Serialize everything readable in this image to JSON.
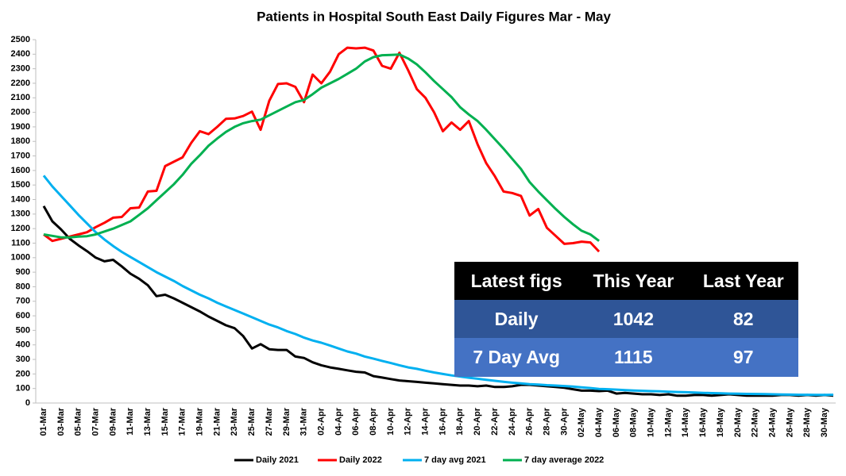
{
  "chart_data": {
    "type": "line",
    "title": "Patients in Hospital  South East Daily Figures Mar - May",
    "categories": [
      "01-Mar",
      null,
      "03-Mar",
      null,
      "05-Mar",
      null,
      "07-Mar",
      null,
      "09-Mar",
      null,
      "11-Mar",
      null,
      "13-Mar",
      null,
      "15-Mar",
      null,
      "17-Mar",
      null,
      "19-Mar",
      null,
      "21-Mar",
      null,
      "23-Mar",
      null,
      "25-Mar",
      null,
      "27-Mar",
      null,
      "29-Mar",
      null,
      "31-Mar",
      null,
      "02-Apr",
      null,
      "04-Apr",
      null,
      "06-Apr",
      null,
      "08-Apr",
      null,
      "10-Apr",
      null,
      "12-Apr",
      null,
      "14-Apr",
      null,
      "16-Apr",
      null,
      "18-Apr",
      null,
      "20-Apr",
      null,
      "22-Apr",
      null,
      "24-Apr",
      null,
      "26-Apr",
      null,
      "28-Apr",
      null,
      "30-Apr",
      null,
      "02-May",
      null,
      "04-May",
      null,
      "06-May",
      null,
      "08-May",
      null,
      "10-May",
      null,
      "12-May",
      null,
      "14-May",
      null,
      "16-May",
      null,
      "18-May",
      null,
      "20-May",
      null,
      "22-May",
      null,
      "24-May",
      null,
      "26-May",
      null,
      "28-May",
      null,
      "30-May",
      null
    ],
    "series": [
      {
        "name": "Daily 2021",
        "color": "#000000",
        "values": [
          1355,
          1250,
          1195,
          1130,
          1085,
          1045,
          1000,
          975,
          985,
          940,
          890,
          855,
          810,
          735,
          745,
          720,
          690,
          660,
          630,
          595,
          565,
          535,
          515,
          460,
          375,
          405,
          370,
          365,
          365,
          320,
          310,
          280,
          260,
          245,
          235,
          225,
          215,
          210,
          185,
          175,
          165,
          155,
          150,
          145,
          140,
          135,
          130,
          125,
          120,
          120,
          115,
          120,
          110,
          110,
          115,
          125,
          125,
          120,
          115,
          110,
          105,
          95,
          85,
          85,
          82,
          85,
          65,
          70,
          65,
          60,
          60,
          55,
          60,
          50,
          50,
          55,
          55,
          50,
          55,
          60,
          55,
          50,
          50,
          50,
          50,
          55,
          55,
          50,
          55,
          50,
          55,
          50
        ]
      },
      {
        "name": "Daily 2022",
        "color": "#ff0000",
        "values": [
          1160,
          1115,
          1130,
          1145,
          1160,
          1175,
          1210,
          1240,
          1275,
          1280,
          1340,
          1345,
          1455,
          1460,
          1630,
          1660,
          1690,
          1790,
          1870,
          1850,
          1900,
          1955,
          1958,
          1975,
          2005,
          1880,
          2080,
          2195,
          2200,
          2175,
          2070,
          2260,
          2200,
          2280,
          2400,
          2445,
          2440,
          2445,
          2425,
          2320,
          2300,
          2410,
          2290,
          2160,
          2100,
          2000,
          1870,
          1930,
          1880,
          1940,
          1780,
          1650,
          1560,
          1455,
          1445,
          1425,
          1290,
          1335,
          1205,
          1150,
          1095,
          1100,
          1110,
          1105,
          1042,
          null,
          null,
          null,
          null,
          null,
          null,
          null,
          null,
          null,
          null,
          null,
          null,
          null,
          null,
          null,
          null,
          null,
          null,
          null,
          null,
          null,
          null,
          null,
          null,
          null,
          null,
          null
        ]
      },
      {
        "name": "7 day avg 2021",
        "color": "#00b0f0",
        "values": [
          1565,
          1490,
          1425,
          1360,
          1295,
          1235,
          1175,
          1125,
          1080,
          1040,
          1005,
          970,
          935,
          900,
          870,
          840,
          805,
          775,
          745,
          720,
          690,
          665,
          640,
          615,
          590,
          565,
          540,
          520,
          495,
          475,
          450,
          430,
          415,
          395,
          375,
          355,
          340,
          320,
          305,
          290,
          275,
          260,
          245,
          235,
          222,
          210,
          200,
          190,
          182,
          174,
          167,
          160,
          153,
          146,
          140,
          135,
          130,
          127,
          123,
          120,
          117,
          113,
          108,
          103,
          97,
          95,
          92,
          89,
          86,
          84,
          82,
          80,
          78,
          76,
          74,
          72,
          70,
          68,
          67,
          65,
          64,
          63,
          62,
          61,
          60,
          59,
          58,
          57,
          57,
          56,
          56,
          57
        ]
      },
      {
        "name": "7 day average 2022",
        "color": "#00b050",
        "values": [
          1160,
          1150,
          1140,
          1140,
          1145,
          1148,
          1160,
          1180,
          1200,
          1225,
          1250,
          1295,
          1340,
          1395,
          1450,
          1505,
          1570,
          1645,
          1705,
          1770,
          1820,
          1865,
          1900,
          1925,
          1940,
          1950,
          1980,
          2010,
          2040,
          2070,
          2085,
          2125,
          2170,
          2200,
          2230,
          2265,
          2300,
          2350,
          2380,
          2393,
          2395,
          2398,
          2370,
          2330,
          2275,
          2215,
          2160,
          2105,
          2035,
          1985,
          1940,
          1880,
          1815,
          1750,
          1680,
          1610,
          1520,
          1455,
          1395,
          1335,
          1280,
          1230,
          1185,
          1160,
          1115,
          null,
          null,
          null,
          null,
          null,
          null,
          null,
          null,
          null,
          null,
          null,
          null,
          null,
          null,
          null,
          null,
          null,
          null,
          null,
          null,
          null,
          null,
          null,
          null,
          null,
          null,
          null
        ]
      }
    ],
    "ylim": [
      0,
      2500
    ],
    "yticks": [
      0,
      100,
      200,
      300,
      400,
      500,
      600,
      700,
      800,
      900,
      1000,
      1100,
      1200,
      1300,
      1400,
      1500,
      1600,
      1700,
      1800,
      1900,
      2000,
      2100,
      2200,
      2300,
      2400,
      2500
    ],
    "grid": false,
    "legend": "bottom"
  },
  "table": {
    "headers": [
      "Latest figs",
      "This Year",
      "Last Year"
    ],
    "rows": [
      [
        "Daily",
        "1042",
        "82"
      ],
      [
        "7 Day Avg",
        "1115",
        "97"
      ]
    ]
  }
}
